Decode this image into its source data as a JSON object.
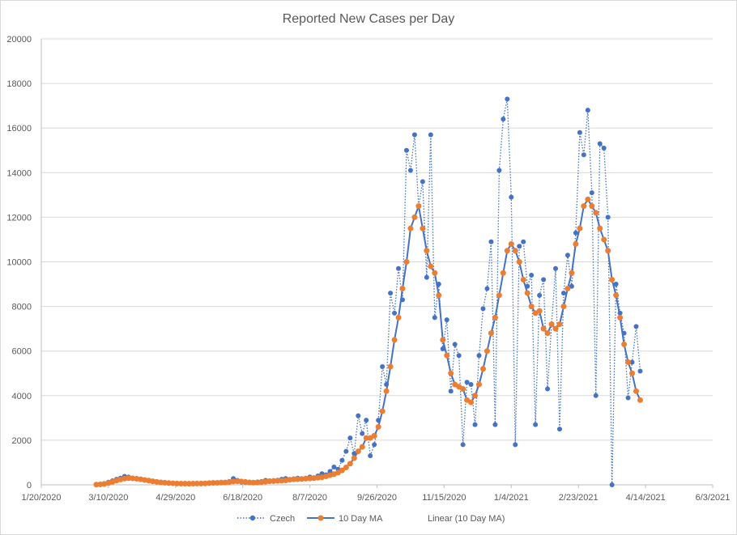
{
  "chart_data": {
    "type": "line",
    "title": "Reported New Cases per Day",
    "xlabel": "",
    "ylabel": "",
    "grid": true,
    "legend_position": "bottom",
    "ylim": [
      0,
      20000
    ],
    "yticks": [
      "0",
      "2000",
      "4000",
      "6000",
      "8000",
      "10000",
      "12000",
      "14000",
      "16000",
      "18000",
      "20000"
    ],
    "xlim": [
      "1/20/2020",
      "6/3/2021"
    ],
    "xlim_days": [
      0,
      500
    ],
    "xticks": [
      "1/20/2020",
      "3/10/2020",
      "4/29/2020",
      "6/18/2020",
      "8/7/2020",
      "9/26/2020",
      "11/15/2020",
      "1/4/2021",
      "2/23/2021",
      "4/14/2021",
      "6/3/2021"
    ],
    "x_start_day": 41,
    "x_step_days": 3,
    "series": [
      {
        "name": "Czech",
        "color": "#4472C4",
        "style": "dotted-with-markers",
        "values": [
          10,
          30,
          60,
          120,
          180,
          250,
          300,
          380,
          350,
          300,
          280,
          250,
          200,
          180,
          150,
          120,
          100,
          80,
          70,
          60,
          50,
          60,
          50,
          40,
          60,
          70,
          60,
          70,
          80,
          100,
          90,
          120,
          100,
          150,
          280,
          200,
          120,
          100,
          90,
          110,
          130,
          150,
          200,
          180,
          150,
          210,
          250,
          280,
          220,
          270,
          300,
          250,
          300,
          350,
          320,
          400,
          500,
          450,
          600,
          800,
          700,
          1100,
          1500,
          2100,
          1400,
          3100,
          2300,
          2900,
          1300,
          1800,
          2900,
          5300,
          4500,
          8600,
          7700,
          9700,
          8300,
          15000,
          14100,
          15700,
          12500,
          13600,
          9300,
          15700,
          7500,
          9000,
          6100,
          7400,
          4200,
          6300,
          5800,
          1800,
          4600,
          4500,
          2700,
          5800,
          7900,
          8800,
          10900,
          2700,
          14100,
          16400,
          17300,
          12900,
          1800,
          10700,
          10900,
          8900,
          9400,
          2700,
          8500,
          9200,
          4300,
          7200,
          9700,
          2500,
          8600,
          10300,
          8900,
          11300,
          15800,
          14800,
          16800,
          13100,
          4000,
          15300,
          15100,
          12000,
          0,
          9000,
          7700,
          6800,
          3900,
          5500,
          7100,
          5100
        ]
      },
      {
        "name": "10 Day MA",
        "color": "#4472C4",
        "marker_color": "#ED7D31",
        "style": "solid-with-markers",
        "values": [
          10,
          20,
          40,
          80,
          130,
          190,
          240,
          280,
          300,
          290,
          270,
          250,
          220,
          190,
          160,
          130,
          110,
          95,
          80,
          70,
          60,
          55,
          55,
          50,
          55,
          60,
          60,
          65,
          75,
          85,
          90,
          100,
          105,
          120,
          150,
          160,
          150,
          130,
          110,
          100,
          105,
          120,
          140,
          160,
          175,
          180,
          185,
          200,
          230,
          250,
          255,
          265,
          275,
          285,
          300,
          320,
          340,
          380,
          430,
          480,
          550,
          650,
          780,
          950,
          1200,
          1500,
          1700,
          2100,
          2100,
          2200,
          2600,
          3300,
          4200,
          5300,
          6500,
          7500,
          8800,
          10000,
          11500,
          12000,
          12500,
          11500,
          10500,
          9800,
          9500,
          8500,
          6500,
          5800,
          5000,
          4500,
          4400,
          4300,
          3800,
          3700,
          4000,
          4500,
          5200,
          6000,
          6800,
          7500,
          8500,
          9500,
          10500,
          10800,
          10500,
          10000,
          9200,
          8600,
          8000,
          7700,
          7800,
          7000,
          6800,
          7200,
          7000,
          7200,
          8000,
          8800,
          9500,
          10800,
          11500,
          12500,
          12800,
          12500,
          12200,
          11500,
          11000,
          10500,
          9200,
          8500,
          7500,
          6300,
          5500,
          5000,
          4200,
          3800
        ]
      },
      {
        "name": "Linear (10 Day MA)",
        "style": "trendline",
        "values": []
      }
    ]
  }
}
